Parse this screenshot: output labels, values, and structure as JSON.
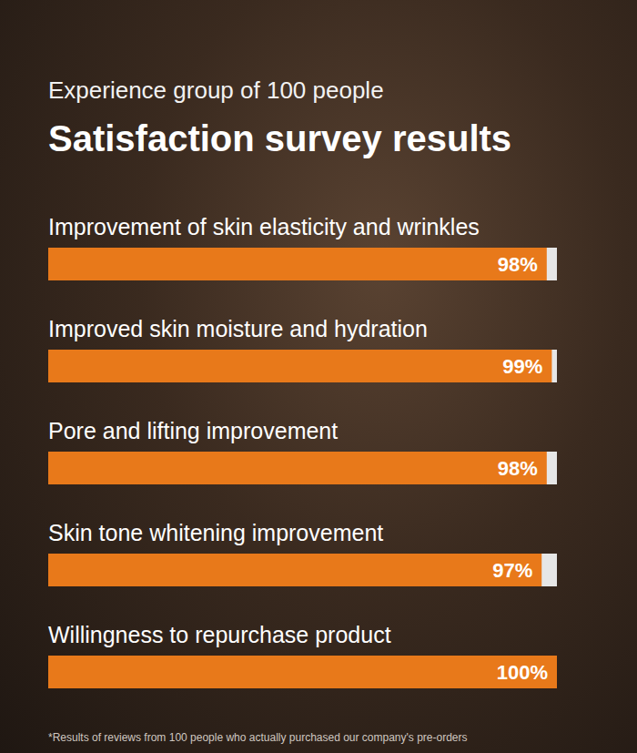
{
  "chart_data": {
    "type": "bar",
    "title": "Satisfaction survey results",
    "subtitle": "Experience group of 100 people",
    "categories": [
      "Improvement of skin elasticity and wrinkles",
      "Improved skin moisture and hydration",
      "Pore and lifting improvement",
      "Skin tone whitening improvement",
      "Willingness to repurchase product"
    ],
    "values": [
      98,
      99,
      98,
      97,
      100
    ],
    "value_labels": [
      "98%",
      "99%",
      "98%",
      "97%",
      "100%"
    ],
    "color": "#e8791a",
    "xlim": [
      0,
      100
    ],
    "orientation": "horizontal",
    "data_labels": true,
    "tick_labels": false,
    "grid": false,
    "annotations": [
      "*Results of reviews from 100 people who actually purchased our company's pre-orders"
    ]
  }
}
